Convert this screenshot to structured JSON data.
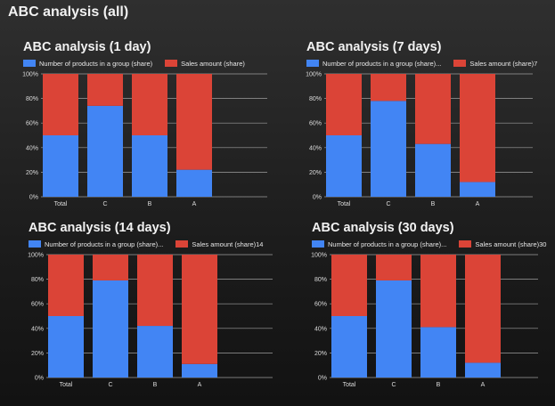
{
  "page_title": "ABC analysis (all)",
  "colors": {
    "products": "#4285f4",
    "sales": "#db4437",
    "grid": "#9e9e9e",
    "text": "#dcdcdc"
  },
  "chart_data": [
    {
      "type": "bar",
      "stacked": true,
      "title": "ABC analysis (1 day)",
      "categories": [
        "Total",
        "C",
        "B",
        "A"
      ],
      "series": [
        {
          "name": "Number of products in a group (share)",
          "values": [
            50,
            74,
            50,
            22
          ]
        },
        {
          "name": "Sales amount (share)",
          "values": [
            50,
            26,
            50,
            78
          ]
        }
      ],
      "ylim": [
        0,
        100
      ],
      "yticks": [
        "0%",
        "20%",
        "40%",
        "60%",
        "80%",
        "100%"
      ],
      "grid": true,
      "legend": "top-left"
    },
    {
      "type": "bar",
      "stacked": true,
      "title": "ABC analysis (7 days)",
      "categories": [
        "Total",
        "C",
        "B",
        "A"
      ],
      "series": [
        {
          "name": "Number of products in a group (share)...",
          "values": [
            50,
            78,
            43,
            12
          ]
        },
        {
          "name": "Sales amount (share)7",
          "values": [
            50,
            22,
            57,
            88
          ]
        }
      ],
      "ylim": [
        0,
        100
      ],
      "yticks": [
        "0%",
        "20%",
        "40%",
        "60%",
        "80%",
        "100%"
      ],
      "grid": true,
      "legend": "top-left"
    },
    {
      "type": "bar",
      "stacked": true,
      "title": "ABC analysis (14 days)",
      "categories": [
        "Total",
        "C",
        "B",
        "A"
      ],
      "series": [
        {
          "name": "Number of products in a group (share)...",
          "values": [
            50,
            79,
            42,
            11
          ]
        },
        {
          "name": "Sales amount (share)14",
          "values": [
            50,
            21,
            58,
            89
          ]
        }
      ],
      "ylim": [
        0,
        100
      ],
      "yticks": [
        "0%",
        "20%",
        "40%",
        "60%",
        "80%",
        "100%"
      ],
      "grid": true,
      "legend": "top-left"
    },
    {
      "type": "bar",
      "stacked": true,
      "title": "ABC analysis (30 days)",
      "categories": [
        "Total",
        "C",
        "B",
        "A"
      ],
      "series": [
        {
          "name": "Number of products in a group (share)...",
          "values": [
            50,
            79,
            41,
            12
          ]
        },
        {
          "name": "Sales amount (share)30",
          "values": [
            50,
            21,
            59,
            88
          ]
        }
      ],
      "ylim": [
        0,
        100
      ],
      "yticks": [
        "0%",
        "20%",
        "40%",
        "60%",
        "80%",
        "100%"
      ],
      "grid": true,
      "legend": "top-left"
    }
  ]
}
